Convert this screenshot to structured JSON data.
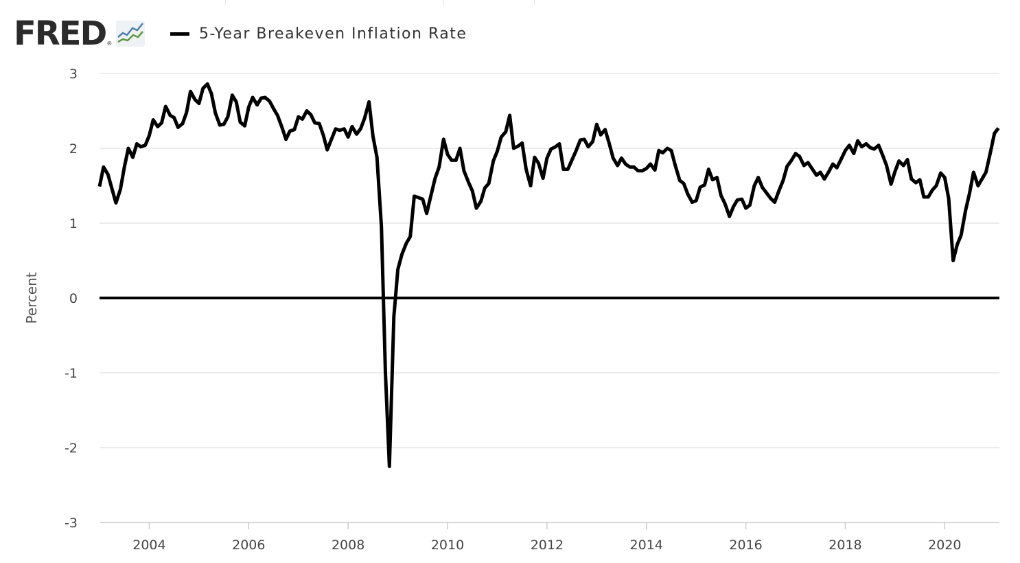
{
  "brand": {
    "name": "FRED",
    "registered_mark": "®",
    "icon": "fred-chart-logo-icon"
  },
  "legend": {
    "label": "5-Year Breakeven Inflation Rate",
    "color": "#000000"
  },
  "chart_data": {
    "type": "line",
    "title": "",
    "ylabel": "Percent",
    "xlabel": "",
    "ylim": [
      -3,
      3
    ],
    "xlim": [
      2003.0,
      2021.1
    ],
    "grid": true,
    "legend_position": "top-left",
    "y_ticks": [
      3,
      2,
      1,
      0,
      -1,
      -2,
      -3
    ],
    "y_tick_labels": [
      "3",
      "2",
      "1",
      "0",
      "-1",
      "-2",
      "-3"
    ],
    "x_ticks": [
      2004,
      2006,
      2008,
      2010,
      2012,
      2014,
      2016,
      2018,
      2020
    ],
    "x_tick_labels": [
      "2004",
      "2006",
      "2008",
      "2010",
      "2012",
      "2014",
      "2016",
      "2018",
      "2020"
    ],
    "series": [
      {
        "name": "5-Year Breakeven Inflation Rate",
        "color": "#000000",
        "points": [
          [
            2003.0,
            1.49
          ],
          [
            2003.08,
            1.75
          ],
          [
            2003.17,
            1.65
          ],
          [
            2003.25,
            1.46
          ],
          [
            2003.33,
            1.27
          ],
          [
            2003.42,
            1.45
          ],
          [
            2003.5,
            1.75
          ],
          [
            2003.58,
            2.0
          ],
          [
            2003.67,
            1.88
          ],
          [
            2003.75,
            2.06
          ],
          [
            2003.83,
            2.02
          ],
          [
            2003.92,
            2.04
          ],
          [
            2004.0,
            2.17
          ],
          [
            2004.08,
            2.38
          ],
          [
            2004.17,
            2.29
          ],
          [
            2004.25,
            2.34
          ],
          [
            2004.33,
            2.56
          ],
          [
            2004.42,
            2.44
          ],
          [
            2004.5,
            2.41
          ],
          [
            2004.58,
            2.28
          ],
          [
            2004.67,
            2.33
          ],
          [
            2004.75,
            2.48
          ],
          [
            2004.83,
            2.76
          ],
          [
            2004.92,
            2.65
          ],
          [
            2005.0,
            2.6
          ],
          [
            2005.08,
            2.8
          ],
          [
            2005.17,
            2.86
          ],
          [
            2005.25,
            2.73
          ],
          [
            2005.33,
            2.47
          ],
          [
            2005.42,
            2.31
          ],
          [
            2005.5,
            2.32
          ],
          [
            2005.58,
            2.42
          ],
          [
            2005.67,
            2.71
          ],
          [
            2005.75,
            2.62
          ],
          [
            2005.83,
            2.35
          ],
          [
            2005.92,
            2.3
          ],
          [
            2006.0,
            2.55
          ],
          [
            2006.08,
            2.68
          ],
          [
            2006.17,
            2.58
          ],
          [
            2006.25,
            2.67
          ],
          [
            2006.33,
            2.68
          ],
          [
            2006.42,
            2.63
          ],
          [
            2006.5,
            2.53
          ],
          [
            2006.58,
            2.44
          ],
          [
            2006.67,
            2.28
          ],
          [
            2006.75,
            2.12
          ],
          [
            2006.83,
            2.23
          ],
          [
            2006.92,
            2.25
          ],
          [
            2007.0,
            2.42
          ],
          [
            2007.08,
            2.39
          ],
          [
            2007.17,
            2.5
          ],
          [
            2007.25,
            2.45
          ],
          [
            2007.33,
            2.34
          ],
          [
            2007.42,
            2.33
          ],
          [
            2007.5,
            2.18
          ],
          [
            2007.58,
            1.98
          ],
          [
            2007.67,
            2.13
          ],
          [
            2007.75,
            2.26
          ],
          [
            2007.83,
            2.24
          ],
          [
            2007.92,
            2.26
          ],
          [
            2008.0,
            2.15
          ],
          [
            2008.08,
            2.29
          ],
          [
            2008.17,
            2.19
          ],
          [
            2008.25,
            2.26
          ],
          [
            2008.33,
            2.4
          ],
          [
            2008.42,
            2.62
          ],
          [
            2008.5,
            2.16
          ],
          [
            2008.58,
            1.88
          ],
          [
            2008.67,
            0.95
          ],
          [
            2008.75,
            -1.0
          ],
          [
            2008.83,
            -2.25
          ],
          [
            2008.92,
            -0.25
          ],
          [
            2009.0,
            0.38
          ],
          [
            2009.08,
            0.58
          ],
          [
            2009.17,
            0.73
          ],
          [
            2009.25,
            0.82
          ],
          [
            2009.33,
            1.36
          ],
          [
            2009.42,
            1.34
          ],
          [
            2009.5,
            1.32
          ],
          [
            2009.58,
            1.13
          ],
          [
            2009.67,
            1.38
          ],
          [
            2009.75,
            1.6
          ],
          [
            2009.83,
            1.75
          ],
          [
            2009.92,
            2.12
          ],
          [
            2010.0,
            1.92
          ],
          [
            2010.08,
            1.84
          ],
          [
            2010.17,
            1.84
          ],
          [
            2010.25,
            2.0
          ],
          [
            2010.33,
            1.7
          ],
          [
            2010.42,
            1.55
          ],
          [
            2010.5,
            1.43
          ],
          [
            2010.58,
            1.2
          ],
          [
            2010.67,
            1.29
          ],
          [
            2010.75,
            1.47
          ],
          [
            2010.83,
            1.53
          ],
          [
            2010.92,
            1.83
          ],
          [
            2011.0,
            1.96
          ],
          [
            2011.08,
            2.15
          ],
          [
            2011.17,
            2.22
          ],
          [
            2011.25,
            2.44
          ],
          [
            2011.33,
            2.0
          ],
          [
            2011.42,
            2.03
          ],
          [
            2011.5,
            2.07
          ],
          [
            2011.58,
            1.72
          ],
          [
            2011.67,
            1.5
          ],
          [
            2011.75,
            1.88
          ],
          [
            2011.83,
            1.8
          ],
          [
            2011.92,
            1.6
          ],
          [
            2012.0,
            1.87
          ],
          [
            2012.08,
            1.99
          ],
          [
            2012.17,
            2.02
          ],
          [
            2012.25,
            2.06
          ],
          [
            2012.33,
            1.72
          ],
          [
            2012.42,
            1.72
          ],
          [
            2012.5,
            1.84
          ],
          [
            2012.58,
            1.96
          ],
          [
            2012.67,
            2.11
          ],
          [
            2012.75,
            2.12
          ],
          [
            2012.83,
            2.02
          ],
          [
            2012.92,
            2.09
          ],
          [
            2013.0,
            2.32
          ],
          [
            2013.08,
            2.18
          ],
          [
            2013.17,
            2.25
          ],
          [
            2013.25,
            2.07
          ],
          [
            2013.33,
            1.87
          ],
          [
            2013.42,
            1.77
          ],
          [
            2013.5,
            1.87
          ],
          [
            2013.58,
            1.79
          ],
          [
            2013.67,
            1.75
          ],
          [
            2013.75,
            1.75
          ],
          [
            2013.83,
            1.7
          ],
          [
            2013.92,
            1.7
          ],
          [
            2014.0,
            1.73
          ],
          [
            2014.08,
            1.79
          ],
          [
            2014.17,
            1.71
          ],
          [
            2014.25,
            1.97
          ],
          [
            2014.33,
            1.94
          ],
          [
            2014.42,
            2.0
          ],
          [
            2014.5,
            1.97
          ],
          [
            2014.58,
            1.77
          ],
          [
            2014.67,
            1.57
          ],
          [
            2014.75,
            1.53
          ],
          [
            2014.83,
            1.39
          ],
          [
            2014.92,
            1.28
          ],
          [
            2015.0,
            1.3
          ],
          [
            2015.08,
            1.48
          ],
          [
            2015.17,
            1.51
          ],
          [
            2015.25,
            1.72
          ],
          [
            2015.33,
            1.58
          ],
          [
            2015.42,
            1.61
          ],
          [
            2015.5,
            1.37
          ],
          [
            2015.58,
            1.26
          ],
          [
            2015.67,
            1.09
          ],
          [
            2015.75,
            1.22
          ],
          [
            2015.83,
            1.31
          ],
          [
            2015.92,
            1.32
          ],
          [
            2016.0,
            1.2
          ],
          [
            2016.08,
            1.24
          ],
          [
            2016.17,
            1.5
          ],
          [
            2016.25,
            1.61
          ],
          [
            2016.33,
            1.48
          ],
          [
            2016.42,
            1.4
          ],
          [
            2016.5,
            1.33
          ],
          [
            2016.58,
            1.28
          ],
          [
            2016.67,
            1.44
          ],
          [
            2016.75,
            1.57
          ],
          [
            2016.83,
            1.76
          ],
          [
            2016.92,
            1.84
          ],
          [
            2017.0,
            1.93
          ],
          [
            2017.08,
            1.89
          ],
          [
            2017.17,
            1.77
          ],
          [
            2017.25,
            1.81
          ],
          [
            2017.33,
            1.73
          ],
          [
            2017.42,
            1.64
          ],
          [
            2017.5,
            1.68
          ],
          [
            2017.58,
            1.59
          ],
          [
            2017.67,
            1.69
          ],
          [
            2017.75,
            1.79
          ],
          [
            2017.83,
            1.74
          ],
          [
            2017.92,
            1.86
          ],
          [
            2018.0,
            1.97
          ],
          [
            2018.08,
            2.04
          ],
          [
            2018.17,
            1.93
          ],
          [
            2018.25,
            2.1
          ],
          [
            2018.33,
            2.02
          ],
          [
            2018.42,
            2.06
          ],
          [
            2018.5,
            2.01
          ],
          [
            2018.58,
            1.99
          ],
          [
            2018.67,
            2.04
          ],
          [
            2018.75,
            1.91
          ],
          [
            2018.83,
            1.77
          ],
          [
            2018.92,
            1.52
          ],
          [
            2019.0,
            1.69
          ],
          [
            2019.08,
            1.83
          ],
          [
            2019.17,
            1.77
          ],
          [
            2019.25,
            1.85
          ],
          [
            2019.33,
            1.59
          ],
          [
            2019.42,
            1.54
          ],
          [
            2019.5,
            1.58
          ],
          [
            2019.58,
            1.35
          ],
          [
            2019.67,
            1.35
          ],
          [
            2019.75,
            1.44
          ],
          [
            2019.83,
            1.5
          ],
          [
            2019.92,
            1.67
          ],
          [
            2020.0,
            1.61
          ],
          [
            2020.08,
            1.33
          ],
          [
            2020.17,
            0.5
          ],
          [
            2020.25,
            0.71
          ],
          [
            2020.33,
            0.84
          ],
          [
            2020.42,
            1.17
          ],
          [
            2020.5,
            1.4
          ],
          [
            2020.58,
            1.68
          ],
          [
            2020.67,
            1.5
          ],
          [
            2020.75,
            1.59
          ],
          [
            2020.83,
            1.68
          ],
          [
            2020.92,
            1.95
          ],
          [
            2021.0,
            2.2
          ],
          [
            2021.08,
            2.27
          ]
        ]
      }
    ]
  },
  "colors": {
    "grid": "#e6e6e6",
    "zero_line": "#000000",
    "line": "#000000",
    "text": "#444444",
    "brand": "#2b2b2b"
  }
}
